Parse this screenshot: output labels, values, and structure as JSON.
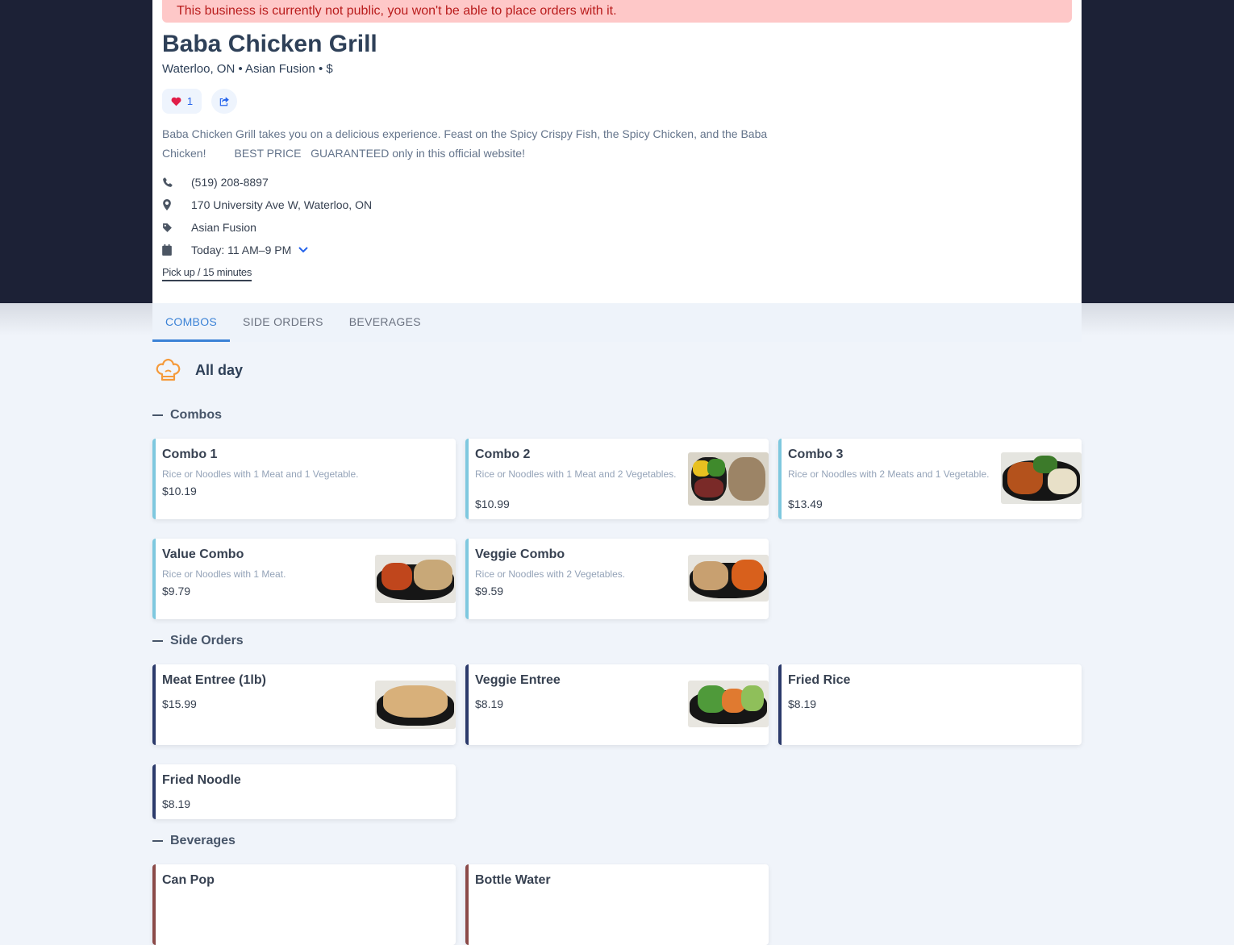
{
  "alert": "This business is currently not public, you won't be able to place orders with it.",
  "business": {
    "name": "Baba Chicken Grill",
    "subtitle": "Waterloo, ON • Asian Fusion • $",
    "likes": "1",
    "description": "Baba Chicken Grill takes you on a delicious experience. Feast on the Spicy Crispy Fish, the Spicy Chicken, and the Baba Chicken!         BEST PRICE   GUARANTEED only in this official website!",
    "phone": "(519) 208-8897",
    "address": "170 University Ave W, Waterloo, ON",
    "category": "Asian Fusion",
    "hours": "Today: 11 AM–9 PM",
    "pickup": "Pick up / 15 minutes"
  },
  "tabs": [
    "COMBOS",
    "SIDE ORDERS",
    "BEVERAGES"
  ],
  "menu_title": "All day",
  "sections": [
    {
      "title": "Combos",
      "accent": "#7ec8df",
      "items": [
        {
          "name": "Combo 1",
          "desc": "Rice or Noodles with 1 Meat and 1 Vegetable.",
          "price": "$10.19"
        },
        {
          "name": "Combo 2",
          "desc": "Rice or Noodles with 1 Meat and 2 Vegetables.",
          "price": "$10.99"
        },
        {
          "name": "Combo 3",
          "desc": "Rice or Noodles with 2 Meats and 1 Vegetable.",
          "price": "$13.49"
        },
        {
          "name": "Value Combo",
          "desc": "Rice or Noodles with 1 Meat.",
          "price": "$9.79"
        },
        {
          "name": "Veggie Combo",
          "desc": "Rice or Noodles with 2 Vegetables.",
          "price": "$9.59"
        }
      ]
    },
    {
      "title": "Side Orders",
      "accent": "#2b3a6b",
      "items": [
        {
          "name": "Meat Entree (1lb)",
          "price": "$15.99"
        },
        {
          "name": "Veggie Entree",
          "price": "$8.19"
        },
        {
          "name": "Fried Rice",
          "price": "$8.19"
        },
        {
          "name": "Fried Noodle",
          "price": "$8.19"
        }
      ]
    },
    {
      "title": "Beverages",
      "accent": "#8b4a48",
      "items": [
        {
          "name": "Can Pop"
        },
        {
          "name": "Bottle Water"
        }
      ]
    }
  ]
}
